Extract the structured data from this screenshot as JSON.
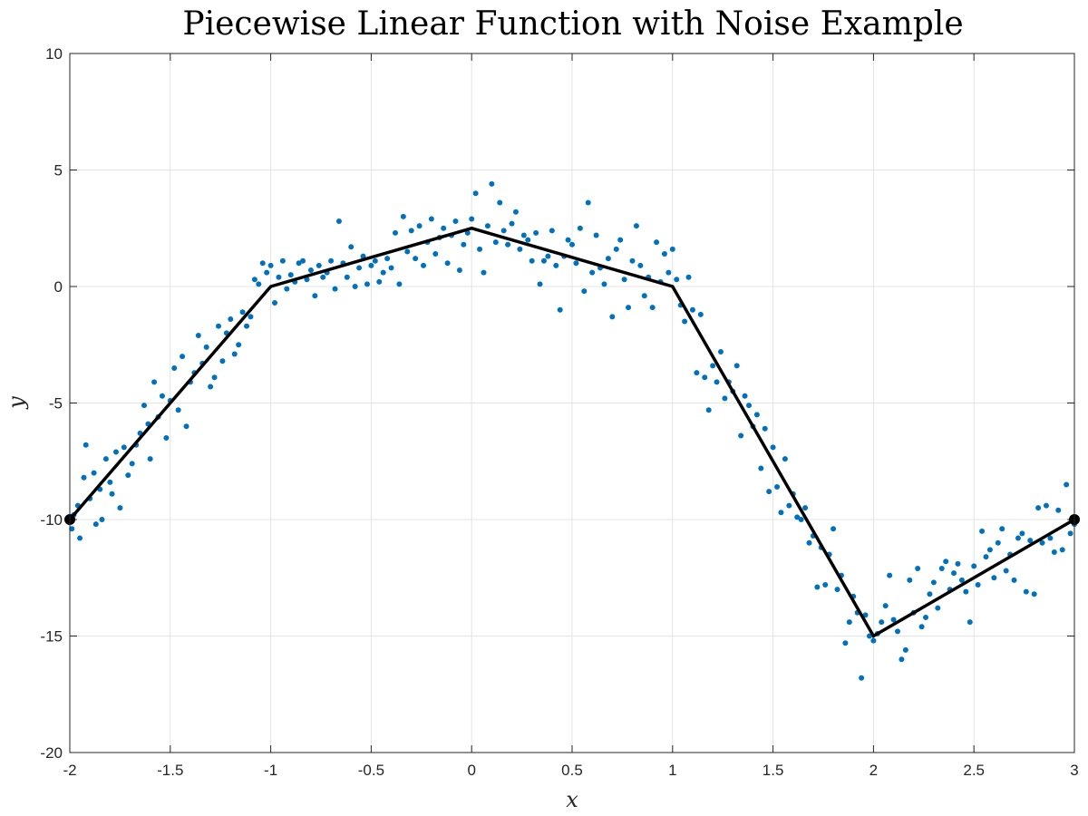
{
  "chart_data": {
    "type": "scatter",
    "title": "Piecewise Linear Function with Noise Example",
    "xlabel": "x",
    "ylabel": "y",
    "xlim": [
      -2,
      3
    ],
    "ylim": [
      -20,
      10
    ],
    "grid": true,
    "x_ticks": [
      -2,
      -1.5,
      -1,
      -0.5,
      0,
      0.5,
      1,
      1.5,
      2,
      2.5,
      3
    ],
    "x_tick_labels": [
      "-2",
      "-1.5",
      "-1",
      "-0.5",
      "0",
      "0.5",
      "1",
      "1.5",
      "2",
      "2.5",
      "3"
    ],
    "y_ticks": [
      -20,
      -15,
      -10,
      -5,
      0,
      5,
      10
    ],
    "y_tick_labels": [
      "-20",
      "-15",
      "-10",
      "-5",
      "0",
      "5",
      "10"
    ],
    "series": [
      {
        "kind": "scatter",
        "color": "#0072BD",
        "points": [
          [
            -1.99,
            -10.4
          ],
          [
            -1.98,
            -9.8
          ],
          [
            -1.96,
            -9.4
          ],
          [
            -1.95,
            -10.8
          ],
          [
            -1.93,
            -8.2
          ],
          [
            -1.92,
            -6.8
          ],
          [
            -1.9,
            -9.1
          ],
          [
            -1.88,
            -8.0
          ],
          [
            -1.87,
            -10.2
          ],
          [
            -1.85,
            -8.7
          ],
          [
            -1.84,
            -10.0
          ],
          [
            -1.82,
            -7.4
          ],
          [
            -1.8,
            -8.4
          ],
          [
            -1.79,
            -8.9
          ],
          [
            -1.77,
            -7.1
          ],
          [
            -1.75,
            -9.5
          ],
          [
            -1.73,
            -6.9
          ],
          [
            -1.71,
            -8.1
          ],
          [
            -1.69,
            -7.6
          ],
          [
            -1.67,
            -6.8
          ],
          [
            -1.65,
            -6.3
          ],
          [
            -1.63,
            -5.1
          ],
          [
            -1.61,
            -5.9
          ],
          [
            -1.6,
            -7.4
          ],
          [
            -1.58,
            -4.1
          ],
          [
            -1.56,
            -5.6
          ],
          [
            -1.54,
            -4.7
          ],
          [
            -1.52,
            -6.5
          ],
          [
            -1.5,
            -4.9
          ],
          [
            -1.48,
            -3.5
          ],
          [
            -1.46,
            -5.3
          ],
          [
            -1.44,
            -3.0
          ],
          [
            -1.42,
            -6.0
          ],
          [
            -1.4,
            -4.1
          ],
          [
            -1.38,
            -3.7
          ],
          [
            -1.36,
            -2.1
          ],
          [
            -1.34,
            -3.3
          ],
          [
            -1.32,
            -2.6
          ],
          [
            -1.3,
            -4.3
          ],
          [
            -1.28,
            -3.9
          ],
          [
            -1.26,
            -1.7
          ],
          [
            -1.24,
            -3.2
          ],
          [
            -1.22,
            -2.0
          ],
          [
            -1.2,
            -1.4
          ],
          [
            -1.18,
            -2.9
          ],
          [
            -1.16,
            -2.5
          ],
          [
            -1.14,
            -1.1
          ],
          [
            -1.12,
            -1.7
          ],
          [
            -1.1,
            -1.3
          ],
          [
            -1.08,
            0.3
          ],
          [
            -1.06,
            0.1
          ],
          [
            -1.04,
            1.0
          ],
          [
            -1.02,
            0.6
          ],
          [
            -1.0,
            0.9
          ],
          [
            -0.98,
            -0.7
          ],
          [
            -0.96,
            0.4
          ],
          [
            -0.94,
            1.1
          ],
          [
            -0.92,
            -0.1
          ],
          [
            -0.9,
            0.5
          ],
          [
            -0.88,
            0.2
          ],
          [
            -0.86,
            1.0
          ],
          [
            -0.84,
            1.1
          ],
          [
            -0.82,
            0.3
          ],
          [
            -0.8,
            0.7
          ],
          [
            -0.78,
            -0.4
          ],
          [
            -0.76,
            0.9
          ],
          [
            -0.74,
            0.4
          ],
          [
            -0.72,
            0.6
          ],
          [
            -0.7,
            1.1
          ],
          [
            -0.68,
            -0.1
          ],
          [
            -0.66,
            2.8
          ],
          [
            -0.64,
            1.0
          ],
          [
            -0.62,
            0.4
          ],
          [
            -0.6,
            1.7
          ],
          [
            -0.58,
            0.0
          ],
          [
            -0.56,
            0.8
          ],
          [
            -0.54,
            1.3
          ],
          [
            -0.52,
            0.1
          ],
          [
            -0.5,
            0.9
          ],
          [
            -0.48,
            1.1
          ],
          [
            -0.46,
            0.2
          ],
          [
            -0.44,
            0.6
          ],
          [
            -0.42,
            1.2
          ],
          [
            -0.4,
            0.8
          ],
          [
            -0.38,
            2.3
          ],
          [
            -0.36,
            0.1
          ],
          [
            -0.34,
            3.0
          ],
          [
            -0.32,
            1.5
          ],
          [
            -0.3,
            2.4
          ],
          [
            -0.28,
            1.2
          ],
          [
            -0.26,
            2.6
          ],
          [
            -0.24,
            0.9
          ],
          [
            -0.22,
            1.9
          ],
          [
            -0.2,
            2.9
          ],
          [
            -0.18,
            1.4
          ],
          [
            -0.16,
            2.1
          ],
          [
            -0.14,
            2.5
          ],
          [
            -0.12,
            1.0
          ],
          [
            -0.1,
            2.2
          ],
          [
            -0.08,
            2.8
          ],
          [
            -0.06,
            0.7
          ],
          [
            -0.04,
            1.8
          ],
          [
            -0.02,
            2.3
          ],
          [
            0.0,
            2.9
          ],
          [
            0.02,
            4.0
          ],
          [
            0.04,
            1.6
          ],
          [
            0.06,
            0.6
          ],
          [
            0.08,
            2.6
          ],
          [
            0.1,
            4.4
          ],
          [
            0.12,
            1.9
          ],
          [
            0.14,
            3.6
          ],
          [
            0.16,
            2.4
          ],
          [
            0.18,
            1.8
          ],
          [
            0.2,
            2.7
          ],
          [
            0.22,
            3.2
          ],
          [
            0.24,
            1.6
          ],
          [
            0.26,
            2.2
          ],
          [
            0.28,
            2.0
          ],
          [
            0.3,
            1.1
          ],
          [
            0.32,
            2.3
          ],
          [
            0.34,
            0.1
          ],
          [
            0.36,
            1.1
          ],
          [
            0.38,
            1.3
          ],
          [
            0.4,
            2.4
          ],
          [
            0.42,
            0.9
          ],
          [
            0.44,
            -1.0
          ],
          [
            0.46,
            1.3
          ],
          [
            0.48,
            2.0
          ],
          [
            0.5,
            1.8
          ],
          [
            0.52,
            1.0
          ],
          [
            0.54,
            2.5
          ],
          [
            0.56,
            -0.2
          ],
          [
            0.58,
            3.6
          ],
          [
            0.6,
            0.6
          ],
          [
            0.62,
            2.2
          ],
          [
            0.64,
            0.8
          ],
          [
            0.66,
            0.1
          ],
          [
            0.68,
            1.2
          ],
          [
            0.7,
            -1.3
          ],
          [
            0.72,
            1.6
          ],
          [
            0.74,
            2.0
          ],
          [
            0.76,
            0.3
          ],
          [
            0.78,
            -0.9
          ],
          [
            0.8,
            1.1
          ],
          [
            0.82,
            2.6
          ],
          [
            0.84,
            0.9
          ],
          [
            0.86,
            -0.4
          ],
          [
            0.88,
            0.4
          ],
          [
            0.9,
            -0.9
          ],
          [
            0.92,
            1.9
          ],
          [
            0.94,
            0.2
          ],
          [
            0.96,
            1.4
          ],
          [
            0.98,
            0.6
          ],
          [
            1.0,
            1.6
          ],
          [
            1.02,
            0.3
          ],
          [
            1.04,
            -0.8
          ],
          [
            1.06,
            -1.5
          ],
          [
            1.08,
            0.4
          ],
          [
            1.1,
            -1.0
          ],
          [
            1.12,
            -3.7
          ],
          [
            1.14,
            -1.2
          ],
          [
            1.16,
            -3.9
          ],
          [
            1.18,
            -5.3
          ],
          [
            1.2,
            -3.4
          ],
          [
            1.22,
            -4.1
          ],
          [
            1.24,
            -2.8
          ],
          [
            1.26,
            -4.8
          ],
          [
            1.28,
            -4.1
          ],
          [
            1.3,
            -4.5
          ],
          [
            1.32,
            -3.4
          ],
          [
            1.34,
            -6.4
          ],
          [
            1.36,
            -4.7
          ],
          [
            1.38,
            -5.1
          ],
          [
            1.4,
            -6.0
          ],
          [
            1.42,
            -5.5
          ],
          [
            1.44,
            -7.8
          ],
          [
            1.46,
            -6.1
          ],
          [
            1.48,
            -8.8
          ],
          [
            1.5,
            -6.9
          ],
          [
            1.52,
            -8.6
          ],
          [
            1.54,
            -9.7
          ],
          [
            1.56,
            -7.4
          ],
          [
            1.58,
            -9.4
          ],
          [
            1.6,
            -8.9
          ],
          [
            1.62,
            -9.9
          ],
          [
            1.64,
            -10.0
          ],
          [
            1.66,
            -9.5
          ],
          [
            1.68,
            -11.0
          ],
          [
            1.7,
            -10.7
          ],
          [
            1.72,
            -12.9
          ],
          [
            1.74,
            -11.2
          ],
          [
            1.76,
            -12.8
          ],
          [
            1.78,
            -11.5
          ],
          [
            1.8,
            -10.4
          ],
          [
            1.82,
            -13.0
          ],
          [
            1.84,
            -12.4
          ],
          [
            1.86,
            -15.3
          ],
          [
            1.88,
            -14.4
          ],
          [
            1.9,
            -13.3
          ],
          [
            1.92,
            -14.0
          ],
          [
            1.94,
            -16.8
          ],
          [
            1.96,
            -14.1
          ],
          [
            1.98,
            -15.0
          ],
          [
            2.0,
            -15.2
          ],
          [
            2.02,
            -14.9
          ],
          [
            2.04,
            -14.4
          ],
          [
            2.06,
            -13.7
          ],
          [
            2.08,
            -12.4
          ],
          [
            2.1,
            -14.3
          ],
          [
            2.12,
            -14.8
          ],
          [
            2.14,
            -16.0
          ],
          [
            2.16,
            -15.6
          ],
          [
            2.18,
            -12.6
          ],
          [
            2.2,
            -14.0
          ],
          [
            2.22,
            -12.1
          ],
          [
            2.24,
            -14.6
          ],
          [
            2.26,
            -14.2
          ],
          [
            2.28,
            -13.2
          ],
          [
            2.3,
            -12.7
          ],
          [
            2.32,
            -13.8
          ],
          [
            2.34,
            -12.1
          ],
          [
            2.36,
            -11.8
          ],
          [
            2.38,
            -13.0
          ],
          [
            2.4,
            -12.3
          ],
          [
            2.42,
            -11.9
          ],
          [
            2.44,
            -12.6
          ],
          [
            2.46,
            -13.1
          ],
          [
            2.48,
            -14.4
          ],
          [
            2.5,
            -12.0
          ],
          [
            2.52,
            -12.8
          ],
          [
            2.54,
            -10.5
          ],
          [
            2.56,
            -11.6
          ],
          [
            2.58,
            -11.3
          ],
          [
            2.6,
            -12.5
          ],
          [
            2.62,
            -11.0
          ],
          [
            2.64,
            -10.4
          ],
          [
            2.66,
            -12.2
          ],
          [
            2.68,
            -11.5
          ],
          [
            2.7,
            -12.6
          ],
          [
            2.72,
            -10.8
          ],
          [
            2.74,
            -10.6
          ],
          [
            2.76,
            -13.1
          ],
          [
            2.78,
            -10.9
          ],
          [
            2.8,
            -13.2
          ],
          [
            2.82,
            -9.5
          ],
          [
            2.84,
            -11.0
          ],
          [
            2.86,
            -9.4
          ],
          [
            2.88,
            -10.8
          ],
          [
            2.9,
            -11.4
          ],
          [
            2.92,
            -9.6
          ],
          [
            2.94,
            -11.3
          ],
          [
            2.96,
            -8.5
          ],
          [
            2.98,
            -10.6
          ],
          [
            3.0,
            -10.2
          ]
        ]
      },
      {
        "kind": "line",
        "color": "#000000",
        "points": [
          [
            -2,
            -10
          ],
          [
            -1,
            0
          ],
          [
            0,
            2.5
          ],
          [
            1,
            0
          ],
          [
            2,
            -15
          ],
          [
            3,
            -10
          ]
        ]
      },
      {
        "kind": "markers",
        "color": "#000000",
        "points": [
          [
            -2,
            -10
          ],
          [
            3,
            -10
          ]
        ]
      }
    ]
  }
}
